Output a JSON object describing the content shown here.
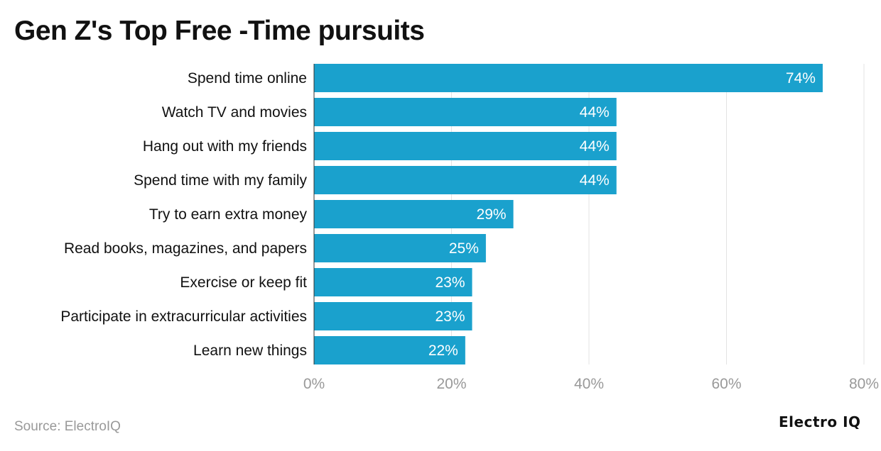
{
  "title": "Gen Z's Top Free -Time pursuits",
  "source": "Source: ElectroIQ",
  "logo": "Electro IQ",
  "chart_data": {
    "type": "bar",
    "orientation": "horizontal",
    "title": "Gen Z's Top Free -Time pursuits",
    "categories": [
      "Spend time online",
      "Watch TV and movies",
      "Hang out with my friends",
      "Spend time with my family",
      "Try to earn extra money",
      "Read books, magazines, and papers",
      "Exercise or keep fit",
      "Participate in extracurricular activities",
      "Learn new things"
    ],
    "values": [
      74,
      44,
      44,
      44,
      29,
      25,
      23,
      23,
      22
    ],
    "labels": [
      "74%",
      "44%",
      "44%",
      "44%",
      "29%",
      "25%",
      "23%",
      "23%",
      "22%"
    ],
    "xlim": [
      0,
      80
    ],
    "ticks": [
      0,
      20,
      40,
      60,
      80
    ],
    "tick_labels": [
      "0%",
      "20%",
      "40%",
      "60%",
      "80%"
    ],
    "grid": true,
    "bar_color": "#1aa1cd"
  }
}
